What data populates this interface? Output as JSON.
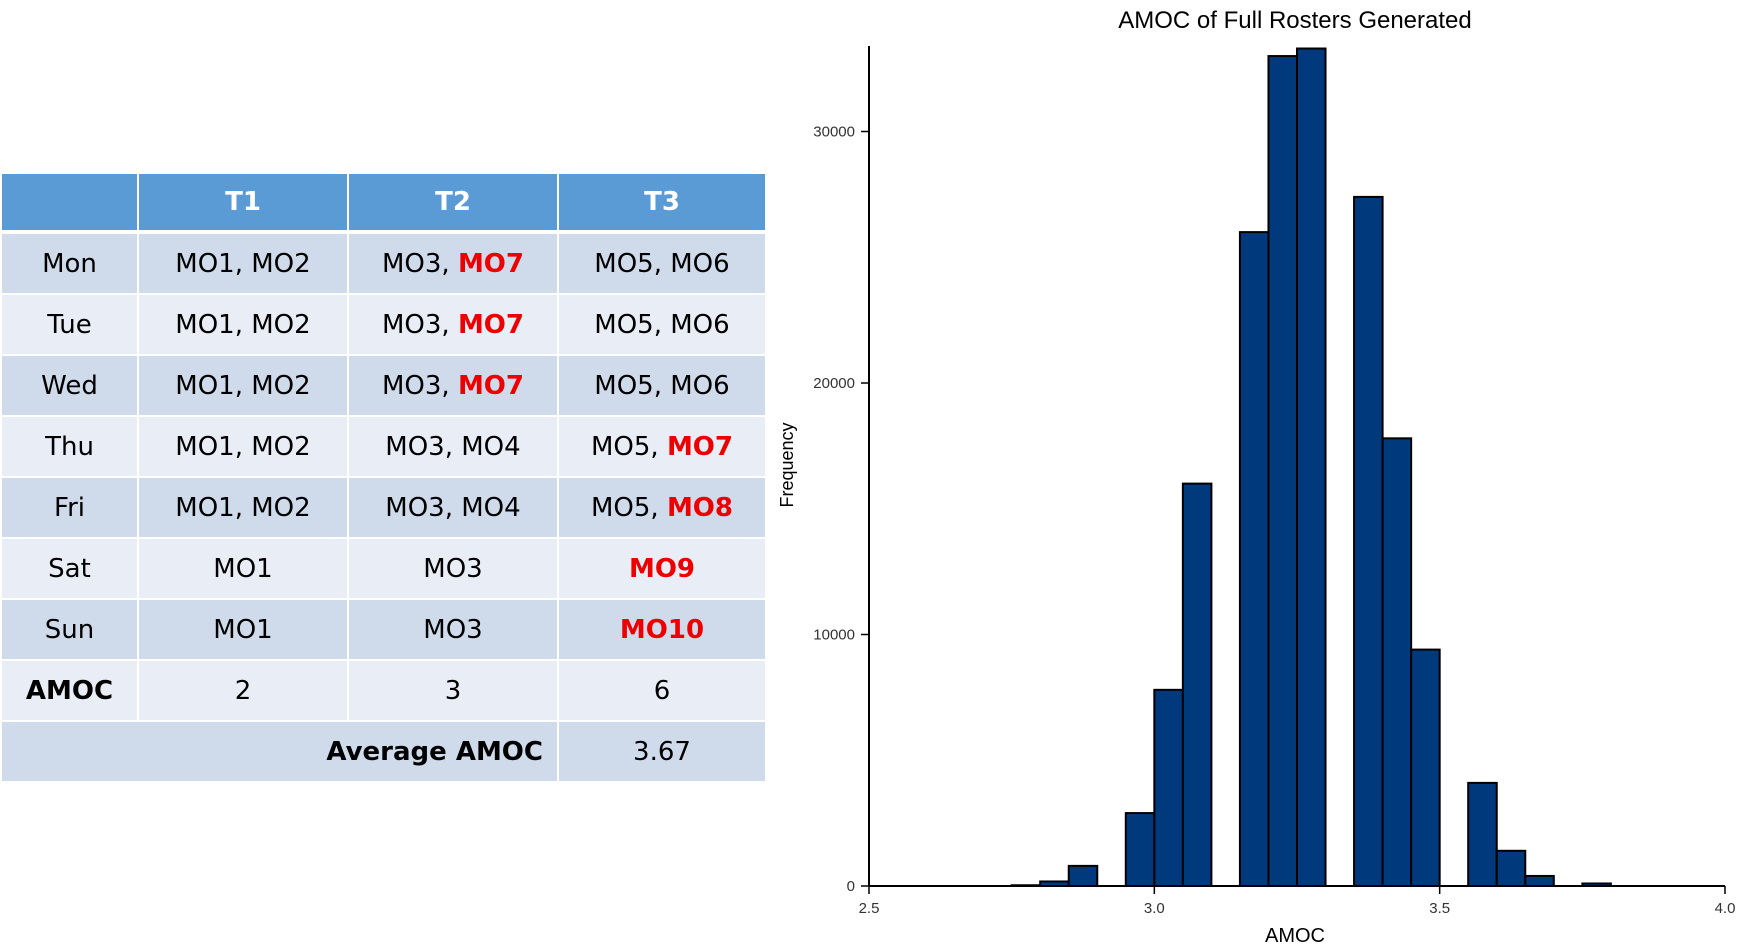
{
  "table": {
    "headers": [
      "",
      "T1",
      "T2",
      "T3"
    ],
    "rows": [
      {
        "day": "Mon",
        "cells": [
          [
            {
              "t": "MO1, MO2"
            }
          ],
          [
            {
              "t": "MO3, "
            },
            {
              "t": "MO7",
              "red": true
            }
          ],
          [
            {
              "t": "MO5, MO6"
            }
          ]
        ]
      },
      {
        "day": "Tue",
        "cells": [
          [
            {
              "t": "MO1, MO2"
            }
          ],
          [
            {
              "t": "MO3, "
            },
            {
              "t": "MO7",
              "red": true
            }
          ],
          [
            {
              "t": "MO5, MO6"
            }
          ]
        ]
      },
      {
        "day": "Wed",
        "cells": [
          [
            {
              "t": "MO1, MO2"
            }
          ],
          [
            {
              "t": "MO3, "
            },
            {
              "t": "MO7",
              "red": true
            }
          ],
          [
            {
              "t": "MO5, MO6"
            }
          ]
        ]
      },
      {
        "day": "Thu",
        "cells": [
          [
            {
              "t": "MO1, MO2"
            }
          ],
          [
            {
              "t": "MO3, MO4"
            }
          ],
          [
            {
              "t": "MO5, "
            },
            {
              "t": "MO7",
              "red": true
            }
          ]
        ]
      },
      {
        "day": "Fri",
        "cells": [
          [
            {
              "t": "MO1, MO2"
            }
          ],
          [
            {
              "t": "MO3, MO4"
            }
          ],
          [
            {
              "t": "MO5, "
            },
            {
              "t": "MO8",
              "red": true
            }
          ]
        ]
      },
      {
        "day": "Sat",
        "cells": [
          [
            {
              "t": "MO1"
            }
          ],
          [
            {
              "t": "MO3"
            }
          ],
          [
            {
              "t": "MO9",
              "red": true
            }
          ]
        ]
      },
      {
        "day": "Sun",
        "cells": [
          [
            {
              "t": "MO1"
            }
          ],
          [
            {
              "t": "MO3"
            }
          ],
          [
            {
              "t": "MO10",
              "red": true
            }
          ]
        ]
      }
    ],
    "amoc_label": "AMOC",
    "amoc_values": [
      "2",
      "3",
      "6"
    ],
    "average_label": "Average AMOC",
    "average_value": "3.67",
    "colors": {
      "header": "#5b9bd5",
      "row_dark": "#cfdaeb",
      "row_light": "#e9eef6",
      "highlight": "#ee0000"
    }
  },
  "chart_data": {
    "type": "bar",
    "title": "AMOC of Full Rosters Generated",
    "xlabel": "AMOC",
    "ylabel": "Frequency",
    "xlim": [
      2.5,
      4.0
    ],
    "ylim": [
      0,
      33400
    ],
    "xticks": [
      "2.5",
      "3.0",
      "3.5",
      "4.0"
    ],
    "yticks": [
      "0",
      "10000",
      "20000",
      "30000"
    ],
    "bin_width": 0.05,
    "bins": [
      {
        "x0": 2.75,
        "value": 30
      },
      {
        "x0": 2.8,
        "value": 180
      },
      {
        "x0": 2.85,
        "value": 800
      },
      {
        "x0": 2.9,
        "value": 0
      },
      {
        "x0": 2.95,
        "value": 2900
      },
      {
        "x0": 3.0,
        "value": 7800
      },
      {
        "x0": 3.05,
        "value": 16000
      },
      {
        "x0": 3.1,
        "value": 0
      },
      {
        "x0": 3.15,
        "value": 26000
      },
      {
        "x0": 3.2,
        "value": 33000
      },
      {
        "x0": 3.25,
        "value": 33300
      },
      {
        "x0": 3.3,
        "value": 0
      },
      {
        "x0": 3.35,
        "value": 27400
      },
      {
        "x0": 3.4,
        "value": 17800
      },
      {
        "x0": 3.45,
        "value": 9400
      },
      {
        "x0": 3.5,
        "value": 0
      },
      {
        "x0": 3.55,
        "value": 4100
      },
      {
        "x0": 3.6,
        "value": 1400
      },
      {
        "x0": 3.65,
        "value": 400
      },
      {
        "x0": 3.7,
        "value": 0
      },
      {
        "x0": 3.75,
        "value": 100
      }
    ],
    "bar_color": "#003a7d",
    "grid": false
  }
}
